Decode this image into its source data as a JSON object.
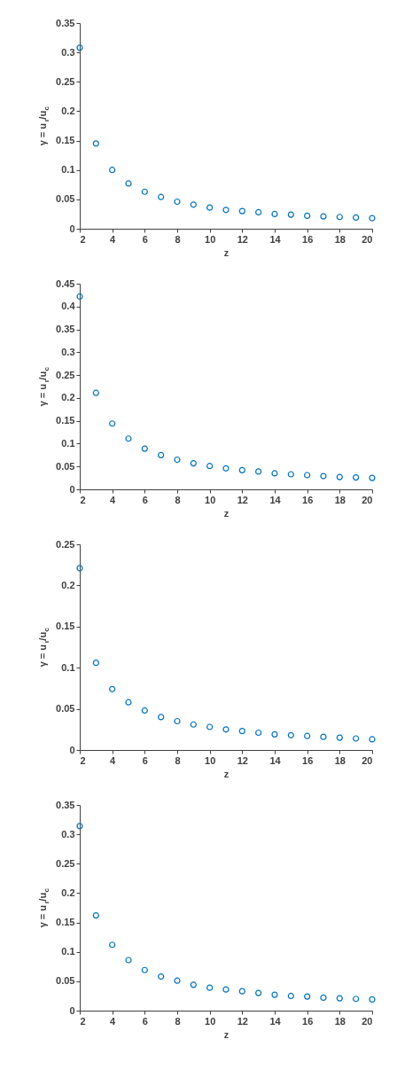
{
  "chart_data": [
    {
      "type": "scatter",
      "xlabel": "z",
      "ylabel": "γ = u$_{r}$/u$_{c}$",
      "marker": "circle",
      "x": [
        2,
        3,
        4,
        5,
        6,
        7,
        8,
        9,
        10,
        11,
        12,
        13,
        14,
        15,
        16,
        17,
        18,
        19,
        20
      ],
      "xlim": [
        2,
        20
      ],
      "xticks": [
        2,
        4,
        6,
        8,
        10,
        12,
        14,
        16,
        18,
        20
      ],
      "ylim": [
        0,
        0.35
      ],
      "yticks": [
        0,
        0.05,
        0.1,
        0.15,
        0.2,
        0.25,
        0.3,
        0.35
      ],
      "series": [
        {
          "color": "#0072bd",
          "values": [
            0.308,
            0.145,
            0.1,
            0.077,
            0.063,
            0.054,
            0.046,
            0.041,
            0.036,
            0.032,
            0.03,
            0.028,
            0.025,
            0.024,
            0.022,
            0.021,
            0.02,
            0.019,
            0.018
          ]
        }
      ]
    },
    {
      "type": "scatter",
      "xlabel": "z",
      "ylabel": "γ = u$_{r}$/u$_{c}$",
      "marker": "circle",
      "x": [
        2,
        3,
        4,
        5,
        6,
        7,
        8,
        9,
        10,
        11,
        12,
        13,
        14,
        15,
        16,
        17,
        18,
        19,
        20
      ],
      "xlim": [
        2,
        20
      ],
      "xticks": [
        2,
        4,
        6,
        8,
        10,
        12,
        14,
        16,
        18,
        20
      ],
      "ylim": [
        0,
        0.45
      ],
      "yticks": [
        0,
        0.05,
        0.1,
        0.15,
        0.2,
        0.25,
        0.3,
        0.35,
        0.4,
        0.45
      ],
      "series": [
        {
          "color": "#0072bd",
          "values": [
            0.422,
            0.211,
            0.144,
            0.111,
            0.089,
            0.075,
            0.065,
            0.057,
            0.051,
            0.046,
            0.042,
            0.039,
            0.035,
            0.033,
            0.031,
            0.029,
            0.027,
            0.026,
            0.025
          ]
        }
      ]
    },
    {
      "type": "scatter",
      "xlabel": "z",
      "ylabel": "γ = u$_{r}$/u$_{c}$",
      "marker": "circle",
      "x": [
        2,
        3,
        4,
        5,
        6,
        7,
        8,
        9,
        10,
        11,
        12,
        13,
        14,
        15,
        16,
        17,
        18,
        19,
        20
      ],
      "xlim": [
        2,
        20
      ],
      "xticks": [
        2,
        4,
        6,
        8,
        10,
        12,
        14,
        16,
        18,
        20
      ],
      "ylim": [
        0,
        0.25
      ],
      "yticks": [
        0,
        0.05,
        0.1,
        0.15,
        0.2,
        0.25
      ],
      "series": [
        {
          "color": "#0072bd",
          "values": [
            0.221,
            0.106,
            0.074,
            0.058,
            0.048,
            0.04,
            0.035,
            0.031,
            0.028,
            0.025,
            0.023,
            0.021,
            0.019,
            0.018,
            0.017,
            0.016,
            0.015,
            0.014,
            0.013
          ]
        }
      ]
    },
    {
      "type": "scatter",
      "xlabel": "z",
      "ylabel": "γ = u$_{r}$/u$_{c}$",
      "marker": "circle",
      "x": [
        2,
        3,
        4,
        5,
        6,
        7,
        8,
        9,
        10,
        11,
        12,
        13,
        14,
        15,
        16,
        17,
        18,
        19,
        20
      ],
      "xlim": [
        2,
        20
      ],
      "xticks": [
        2,
        4,
        6,
        8,
        10,
        12,
        14,
        16,
        18,
        20
      ],
      "ylim": [
        0,
        0.35
      ],
      "yticks": [
        0,
        0.05,
        0.1,
        0.15,
        0.2,
        0.25,
        0.3,
        0.35
      ],
      "series": [
        {
          "color": "#0072bd",
          "values": [
            0.314,
            0.162,
            0.112,
            0.086,
            0.069,
            0.058,
            0.051,
            0.044,
            0.039,
            0.036,
            0.033,
            0.03,
            0.027,
            0.025,
            0.024,
            0.022,
            0.021,
            0.02,
            0.019
          ]
        }
      ]
    }
  ]
}
